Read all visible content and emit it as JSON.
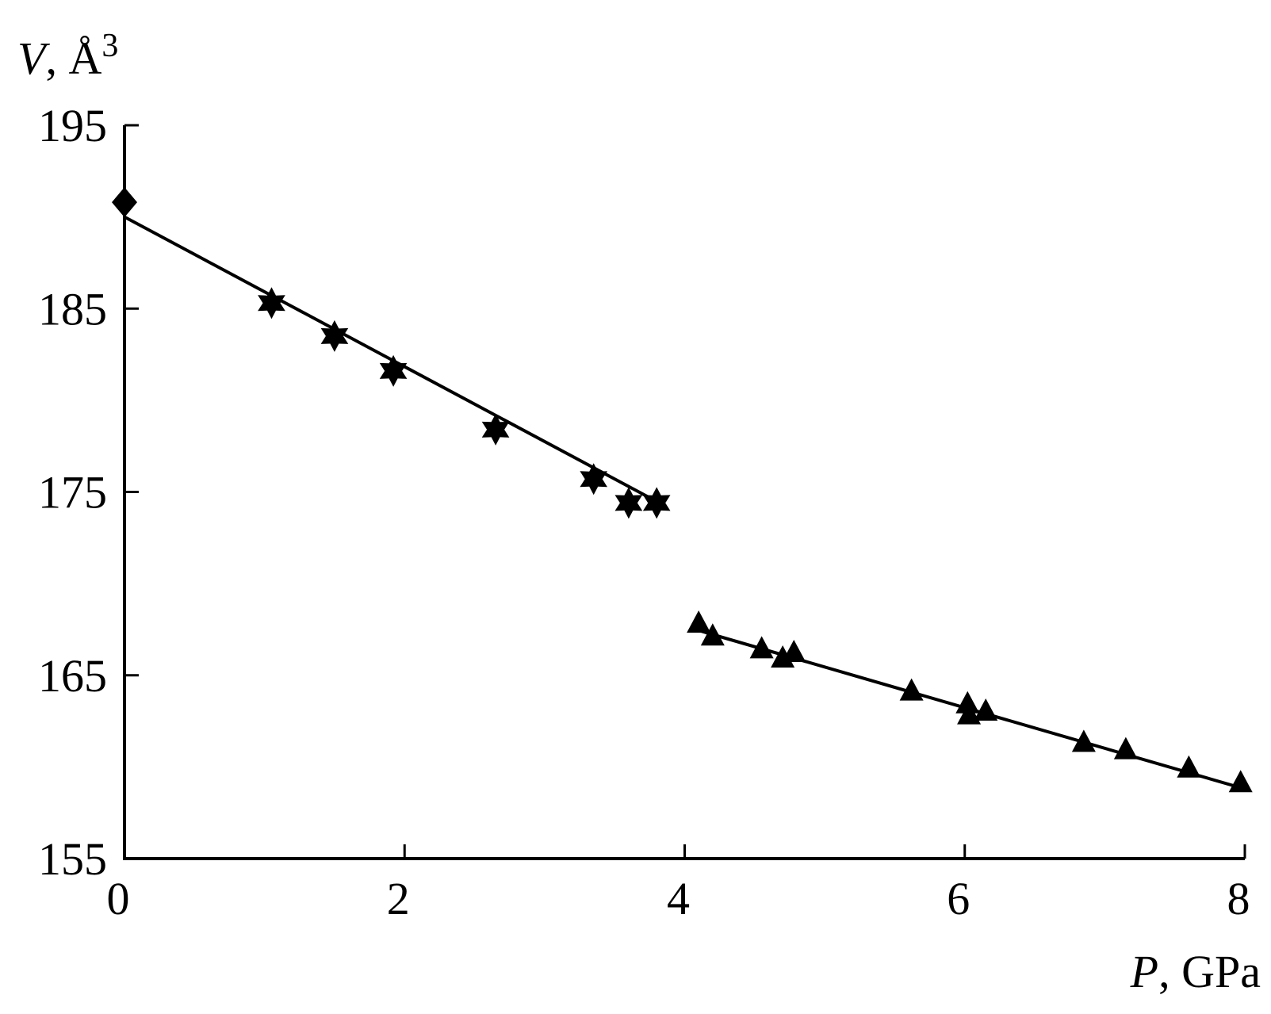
{
  "chart_data": {
    "type": "scatter",
    "xlabel": {
      "var": "P",
      "unit": ", GPa"
    },
    "ylabel": {
      "var": "V",
      "unit": ", Å",
      "sup": "3"
    },
    "xlim": [
      0,
      8
    ],
    "ylim": [
      155,
      195
    ],
    "xticks": [
      0,
      2,
      4,
      6,
      8
    ],
    "yticks": [
      155,
      165,
      175,
      185,
      195
    ],
    "xtick_labels": [
      "0",
      "2",
      "4",
      "6",
      "8"
    ],
    "ytick_labels": [
      "155",
      "165",
      "175",
      "185",
      "195"
    ],
    "grid": false,
    "series": [
      {
        "marker": "diamond",
        "points": [
          [
            0.0,
            190.8
          ]
        ]
      },
      {
        "marker": "star",
        "points": [
          [
            1.05,
            185.3
          ],
          [
            1.5,
            183.5
          ],
          [
            1.92,
            181.6
          ],
          [
            2.65,
            178.4
          ],
          [
            3.35,
            175.7
          ],
          [
            3.6,
            174.4
          ],
          [
            3.8,
            174.4
          ]
        ]
      },
      {
        "marker": "triangle",
        "points": [
          [
            4.1,
            167.8
          ],
          [
            4.2,
            167.1
          ],
          [
            4.55,
            166.4
          ],
          [
            4.7,
            165.9
          ],
          [
            4.78,
            166.2
          ],
          [
            5.62,
            164.1
          ],
          [
            6.02,
            163.4
          ],
          [
            6.03,
            162.8
          ],
          [
            6.15,
            163.0
          ],
          [
            6.85,
            161.3
          ],
          [
            7.15,
            160.9
          ],
          [
            7.6,
            159.9
          ],
          [
            7.97,
            159.1
          ]
        ]
      }
    ],
    "fit_lines": [
      {
        "from": [
          0.0,
          190.0
        ],
        "to": [
          3.82,
          174.4
        ]
      },
      {
        "from": [
          4.12,
          167.4
        ],
        "to": [
          8.0,
          158.8
        ]
      }
    ]
  }
}
